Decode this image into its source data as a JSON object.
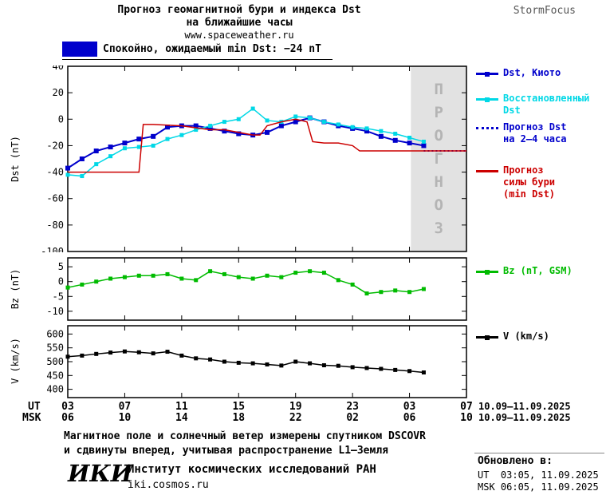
{
  "header": {
    "title_line1": "Прогноз геомагнитной бури и индекса Dst",
    "title_line2": "на ближайшие часы",
    "site_url": "www.spaceweather.ru",
    "brand": "StormFocus"
  },
  "status_banner": {
    "swatch_color": "#0000cc",
    "text": "Спокойно, ожидаемый min Dst: −24 nT"
  },
  "legend": {
    "items": [
      {
        "label": "Dst, Киото",
        "color": "#0000cc",
        "line": "solid",
        "marker": true
      },
      {
        "label": "Восстановленный\nDst",
        "color": "#00d8e6",
        "line": "solid",
        "marker": true
      },
      {
        "label": "Прогноз Dst\nна 2—4 часа",
        "color": "#0000cc",
        "line": "dotted",
        "marker": false
      },
      {
        "label": "Прогноз\nсилы бури\n(min Dst)",
        "color": "#cc0000",
        "line": "solid",
        "marker": false
      },
      {
        "label": "Bz (nT, GSM)",
        "color": "#00bb00",
        "line": "solid",
        "marker": true
      },
      {
        "label": "V (km/s)",
        "color": "#000000",
        "line": "solid",
        "marker": true
      }
    ]
  },
  "axes": {
    "ut_label": "UT",
    "msk_label": "MSK",
    "ut_ticks": [
      "03",
      "07",
      "11",
      "15",
      "19",
      "23",
      "03",
      "07"
    ],
    "msk_ticks": [
      "06",
      "10",
      "14",
      "18",
      "22",
      "02",
      "06",
      "10"
    ],
    "ut_dates": "10.09—11.09.2025",
    "msk_dates": "10.09—11.09.2025"
  },
  "footer": {
    "note_line1": "Магнитное поле и солнечный ветер измерены спутником DSCOVR",
    "note_line2": "и сдвинуты вперед, учитывая распространение L1—Земля",
    "logo": "ИКИ",
    "institute": "Институт космических исследований РАН",
    "institute_url": "iki.cosmos.ru",
    "updated_label": "Обновлено в:",
    "updated_ut": "UT  03:05, 11.09.2025",
    "updated_msk": "MSK 06:05, 11.09.2025"
  },
  "chart_data": [
    {
      "type": "line",
      "name": "dst",
      "ylabel": "Dst (nT)",
      "xlim": [
        3,
        31
      ],
      "ylim": [
        -100,
        40
      ],
      "yticks": [
        40,
        20,
        0,
        -20,
        -40,
        -60,
        -80,
        -100
      ],
      "xticks": [
        3,
        7,
        11,
        15,
        19,
        23,
        27,
        31
      ],
      "forecast_region": {
        "x_start": 27.1,
        "x_end": 31,
        "label": "ПРОГНОЗ",
        "fill": "#e2e2e2",
        "text_color": "#b4b4b4"
      },
      "series": [
        {
          "name": "Dst, Киото",
          "color": "#0000cc",
          "width": 2,
          "marker": "square",
          "msize": 6,
          "x": [
            3,
            4,
            5,
            6,
            7,
            8,
            9,
            10,
            11,
            12,
            13,
            14,
            15,
            16,
            17,
            18,
            19,
            20,
            21,
            22,
            23,
            24,
            25,
            26,
            27,
            28
          ],
          "y": [
            -37,
            -30,
            -24,
            -21,
            -18,
            -15,
            -13,
            -6,
            -5,
            -5,
            -7,
            -9,
            -11,
            -12,
            -10,
            -5,
            -2,
            1,
            -2,
            -5,
            -7,
            -9,
            -13,
            -16,
            -18,
            -20
          ]
        },
        {
          "name": "Восстановленный Dst",
          "color": "#00d8e6",
          "width": 1.5,
          "marker": "square",
          "msize": 5,
          "x": [
            3,
            4,
            5,
            6,
            7,
            8,
            9,
            10,
            11,
            12,
            13,
            14,
            15,
            16,
            17,
            18,
            19,
            20,
            21,
            22,
            23,
            24,
            25,
            26,
            27,
            28
          ],
          "y": [
            -42,
            -43,
            -34,
            -28,
            -22,
            -21,
            -20,
            -15,
            -12,
            -8,
            -5,
            -2,
            0,
            8,
            -1,
            -2,
            2,
            1,
            -2,
            -4,
            -6,
            -7,
            -9,
            -11,
            -14,
            -17
          ]
        },
        {
          "name": "Прогноз Dst на 2—4 часа",
          "color": "#0000cc",
          "width": 2,
          "dash": "2,3",
          "x": [
            28,
            31
          ],
          "y": [
            -24,
            -24
          ]
        },
        {
          "name": "Прогноз силы бури (min Dst)",
          "color": "#cc0000",
          "width": 1.5,
          "x": [
            3,
            8,
            8.3,
            9,
            11,
            13,
            14,
            16,
            16.5,
            17,
            18,
            19,
            19.8,
            20.2,
            21,
            22,
            23,
            23.5,
            24,
            31
          ],
          "y": [
            -40,
            -40,
            -4,
            -4,
            -5,
            -8,
            -8,
            -12,
            -12,
            -5,
            -2,
            0,
            -2,
            -17,
            -18,
            -18,
            -20,
            -24,
            -24,
            -24
          ]
        }
      ]
    },
    {
      "type": "line",
      "name": "bz",
      "ylabel": "Bz (nT)",
      "xlim": [
        3,
        31
      ],
      "ylim": [
        -13,
        8
      ],
      "yticks": [
        5,
        0,
        -5,
        -10
      ],
      "xticks": [
        3,
        7,
        11,
        15,
        19,
        23,
        27,
        31
      ],
      "series": [
        {
          "name": "Bz (nT, GSM)",
          "color": "#00bb00",
          "width": 1.5,
          "marker": "square",
          "msize": 5,
          "x": [
            3,
            4,
            5,
            6,
            7,
            8,
            9,
            10,
            11,
            12,
            13,
            14,
            15,
            16,
            17,
            18,
            19,
            20,
            21,
            22,
            23,
            24,
            25,
            26,
            27,
            28
          ],
          "y": [
            -2,
            -1,
            0,
            1,
            1.5,
            2,
            2,
            2.5,
            1,
            0.5,
            3.5,
            2.5,
            1.5,
            1,
            2,
            1.5,
            3,
            3.5,
            3,
            0.5,
            -1,
            -4,
            -3.5,
            -3,
            -3.5,
            -2.5
          ]
        }
      ]
    },
    {
      "type": "line",
      "name": "v",
      "ylabel": "V (km/s)",
      "xlim": [
        3,
        31
      ],
      "ylim": [
        370,
        630
      ],
      "yticks": [
        600,
        550,
        500,
        450,
        400
      ],
      "xticks": [
        3,
        7,
        11,
        15,
        19,
        23,
        27,
        31
      ],
      "series": [
        {
          "name": "V (km/s)",
          "color": "#000000",
          "width": 1.5,
          "marker": "square",
          "msize": 5,
          "x": [
            3,
            4,
            5,
            6,
            7,
            8,
            9,
            10,
            11,
            12,
            13,
            14,
            15,
            16,
            17,
            18,
            19,
            20,
            21,
            22,
            23,
            24,
            25,
            26,
            27,
            28
          ],
          "y": [
            518,
            522,
            528,
            533,
            537,
            534,
            530,
            536,
            522,
            512,
            508,
            500,
            496,
            494,
            490,
            486,
            500,
            494,
            487,
            485,
            480,
            477,
            474,
            470,
            466,
            461
          ]
        }
      ]
    }
  ]
}
